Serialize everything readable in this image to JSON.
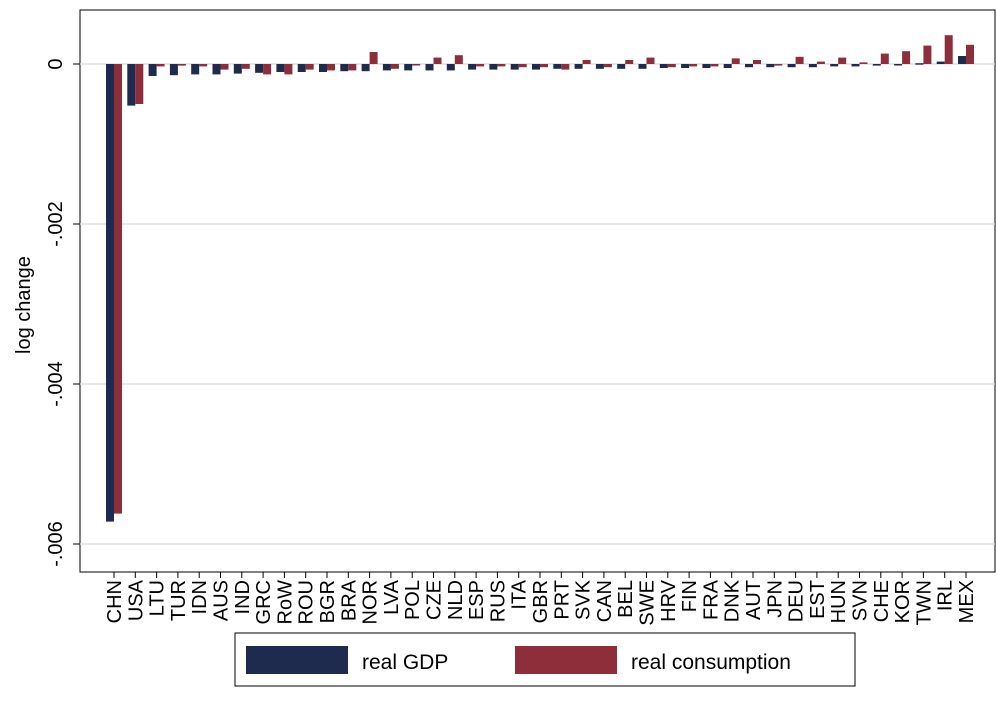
{
  "chart_data": {
    "type": "bar",
    "ylabel": "log change",
    "ylim": [
      -0.0066,
      0.0007
    ],
    "yticks": [
      0,
      -0.002,
      -0.004,
      -0.006
    ],
    "ytick_labels": [
      "0",
      "-.002",
      "-.004",
      "-.006"
    ],
    "grid": true,
    "legend_position": "bottom",
    "categories": [
      "CHN",
      "USA",
      "LTU",
      "TUR",
      "IDN",
      "AUS",
      "IND",
      "GRC",
      "RoW",
      "ROU",
      "BGR",
      "BRA",
      "NOR",
      "LVA",
      "POL",
      "CZE",
      "NLD",
      "ESP",
      "RUS",
      "ITA",
      "GBR",
      "PRT",
      "SVK",
      "CAN",
      "BEL",
      "SWE",
      "HRV",
      "FIN",
      "FRA",
      "DNK",
      "AUT",
      "JPN",
      "DEU",
      "EST",
      "HUN",
      "SVN",
      "CHE",
      "KOR",
      "TWN",
      "IRL",
      "MEX"
    ],
    "series": [
      {
        "name": "real GDP",
        "color": "#1f2b4e",
        "values": [
          -0.00572,
          -0.00052,
          -0.00015,
          -0.00014,
          -0.00013,
          -0.00013,
          -0.00012,
          -0.00011,
          -0.0001,
          -0.0001,
          -0.0001,
          -9e-05,
          -9e-05,
          -8e-05,
          -8e-05,
          -8e-05,
          -8e-05,
          -7e-05,
          -7e-05,
          -7e-05,
          -7e-05,
          -6e-05,
          -6e-05,
          -6e-05,
          -6e-05,
          -6e-05,
          -5e-05,
          -5e-05,
          -5e-05,
          -5e-05,
          -4e-05,
          -4e-05,
          -4e-05,
          -4e-05,
          -3e-05,
          -3e-05,
          -2e-05,
          -1e-05,
          1e-05,
          3e-05,
          0.0001
        ]
      },
      {
        "name": "real consumption",
        "color": "#8e2e3a",
        "values": [
          -0.00562,
          -0.0005,
          -3e-05,
          -2e-05,
          -3e-05,
          -7e-05,
          -6e-05,
          -0.00013,
          -0.00013,
          -7e-05,
          -8e-05,
          -8e-05,
          0.00015,
          -6e-05,
          -1e-05,
          8e-05,
          0.00011,
          -3e-05,
          -3e-05,
          -4e-05,
          -4e-05,
          -7e-05,
          5e-05,
          -4e-05,
          5e-05,
          8e-05,
          -4e-05,
          -3e-05,
          -3e-05,
          7e-05,
          5e-05,
          -2e-05,
          9e-05,
          3e-05,
          8e-05,
          2e-05,
          0.00013,
          0.00016,
          0.00023,
          0.00036,
          0.00024
        ]
      }
    ]
  }
}
